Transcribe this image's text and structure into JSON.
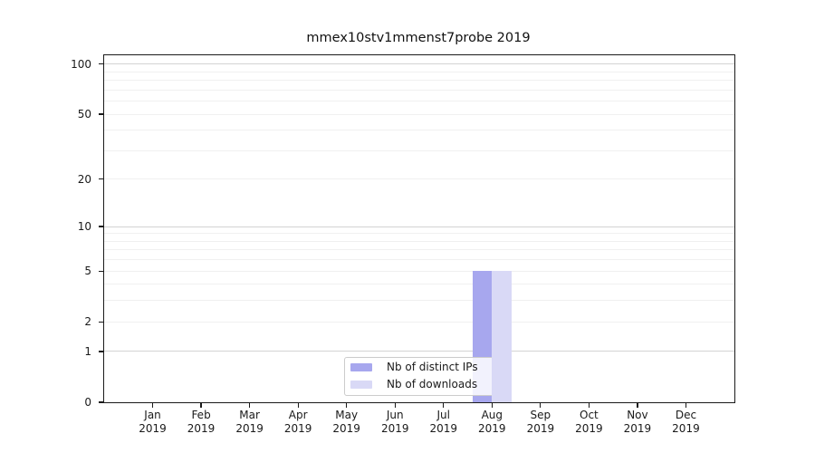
{
  "chart_data": {
    "type": "bar",
    "title": "mmex10stv1mmenst7probe 2019",
    "categories": [
      {
        "month": "Jan",
        "year": "2019"
      },
      {
        "month": "Feb",
        "year": "2019"
      },
      {
        "month": "Mar",
        "year": "2019"
      },
      {
        "month": "Apr",
        "year": "2019"
      },
      {
        "month": "May",
        "year": "2019"
      },
      {
        "month": "Jun",
        "year": "2019"
      },
      {
        "month": "Jul",
        "year": "2019"
      },
      {
        "month": "Aug",
        "year": "2019"
      },
      {
        "month": "Sep",
        "year": "2019"
      },
      {
        "month": "Oct",
        "year": "2019"
      },
      {
        "month": "Nov",
        "year": "2019"
      },
      {
        "month": "Dec",
        "year": "2019"
      }
    ],
    "series": [
      {
        "name": "Nb of distinct IPs",
        "color": "#a7a7ee",
        "values": [
          0,
          0,
          0,
          0,
          0,
          0,
          0,
          5,
          0,
          0,
          0,
          0
        ]
      },
      {
        "name": "Nb of downloads",
        "color": "#d9d9f6",
        "values": [
          0,
          0,
          0,
          0,
          0,
          0,
          0,
          5,
          0,
          0,
          0,
          0
        ]
      }
    ],
    "y_axis": {
      "scale": "log1p",
      "ticks": [
        0,
        1,
        2,
        5,
        10,
        20,
        50,
        100
      ],
      "top_value": 113,
      "major_gridlines": [
        1,
        10,
        100
      ],
      "minor_gridlines": [
        2,
        3,
        4,
        5,
        6,
        7,
        8,
        9,
        20,
        30,
        40,
        50,
        60,
        70,
        80,
        90
      ]
    },
    "x_axis": {
      "lim": [
        -1,
        12
      ],
      "bar_width_units": 0.4
    },
    "legend": {
      "location": "lower center"
    },
    "colors": {
      "background": "#ffffff",
      "grid_major": "#d3d3d3",
      "grid_minor": "#f0f0f0",
      "spine": "#1a1a1a"
    }
  }
}
